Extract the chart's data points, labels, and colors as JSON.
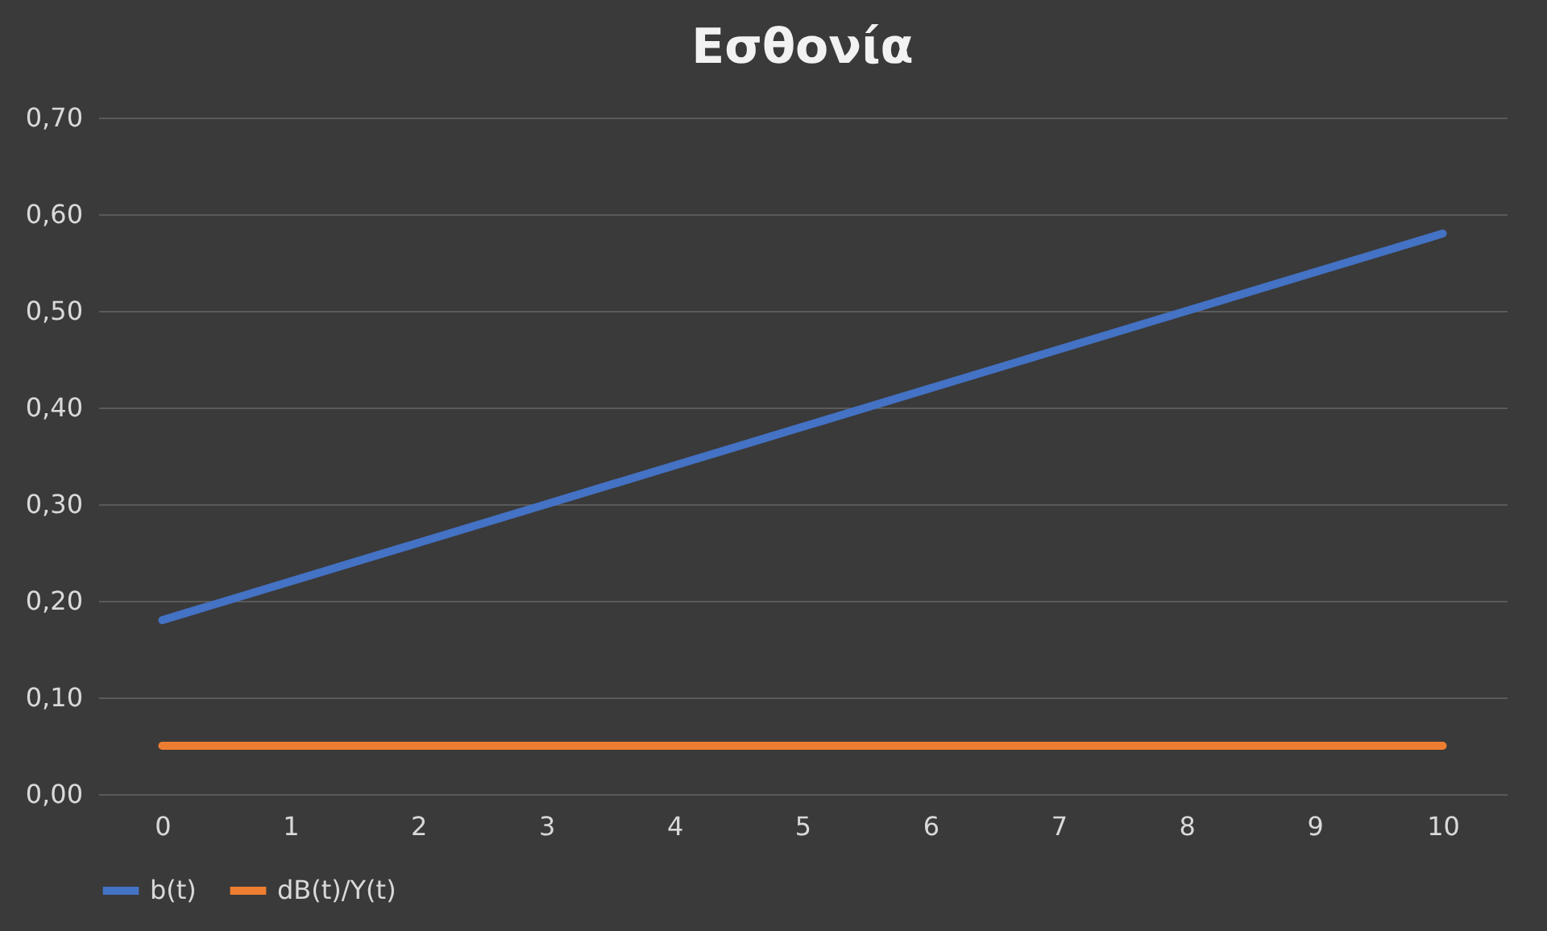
{
  "chart_data": {
    "type": "line",
    "title": "Εσθονία",
    "categories": [
      "0",
      "1",
      "2",
      "3",
      "4",
      "5",
      "6",
      "7",
      "8",
      "9",
      "10"
    ],
    "series": [
      {
        "name": "b(t)",
        "color": "#4472c4",
        "values": [
          0.18,
          0.22,
          0.26,
          0.3,
          0.34,
          0.38,
          0.42,
          0.46,
          0.5,
          0.54,
          0.58
        ]
      },
      {
        "name": "dB(t)/Y(t)",
        "color": "#ed7d31",
        "values": [
          0.05,
          0.05,
          0.05,
          0.05,
          0.05,
          0.05,
          0.05,
          0.05,
          0.05,
          0.05,
          0.05
        ]
      }
    ],
    "ylim": [
      0,
      0.7
    ],
    "yticks": [
      {
        "value": 0,
        "label": "0,00"
      },
      {
        "value": 0.1,
        "label": "0,10"
      },
      {
        "value": 0.2,
        "label": "0,20"
      },
      {
        "value": 0.3,
        "label": "0,30"
      },
      {
        "value": 0.4,
        "label": "0,40"
      },
      {
        "value": 0.5,
        "label": "0,50"
      },
      {
        "value": 0.6,
        "label": "0,60"
      },
      {
        "value": 0.7,
        "label": "0,70"
      }
    ],
    "grid": "y",
    "legend": "bottom",
    "marker": "none",
    "line_style": "solid"
  }
}
